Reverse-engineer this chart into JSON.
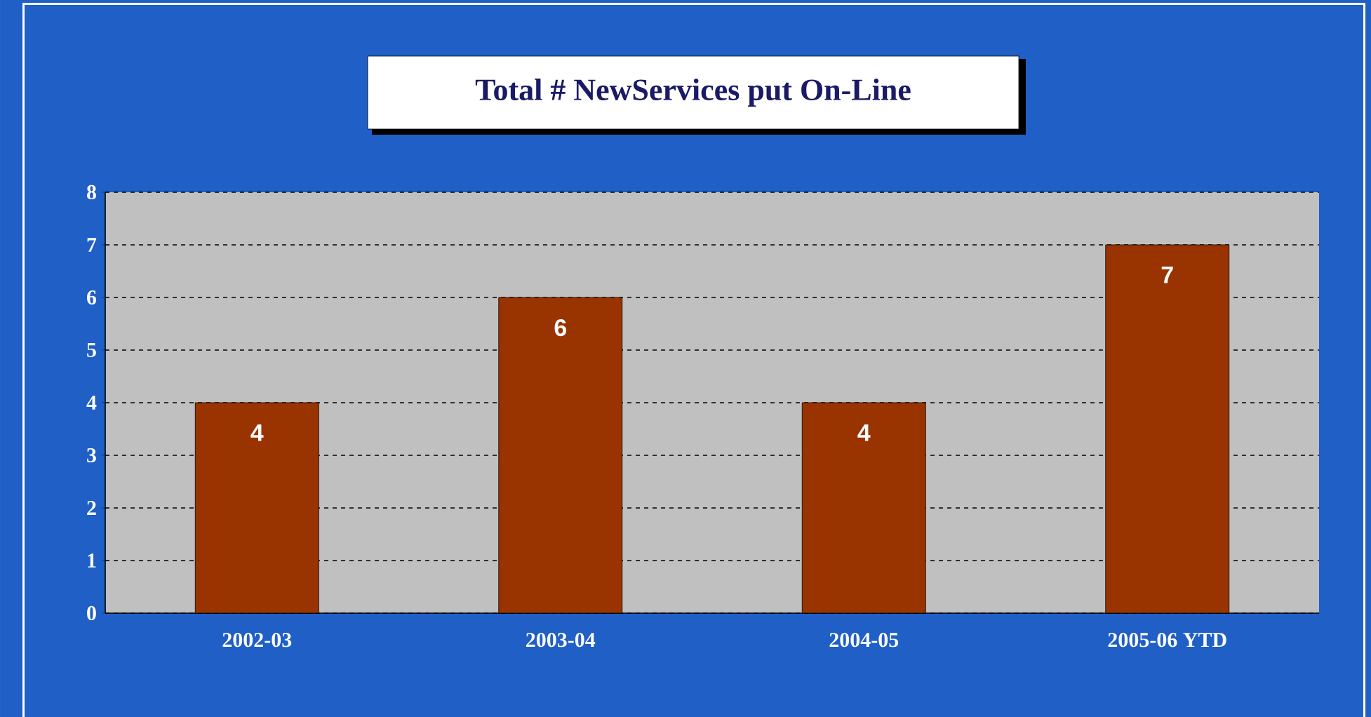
{
  "chart_data": {
    "type": "bar",
    "title": "Total # NewServices put On-Line",
    "categories": [
      "2002-03",
      "2003-04",
      "2004-05",
      "2005-06 YTD"
    ],
    "values": [
      4,
      6,
      4,
      7
    ],
    "color": "#993300",
    "ylim": [
      0,
      8
    ],
    "yticks": [
      0,
      1,
      2,
      3,
      4,
      5,
      6,
      7,
      8
    ],
    "grid": "y",
    "data_labels": true
  }
}
